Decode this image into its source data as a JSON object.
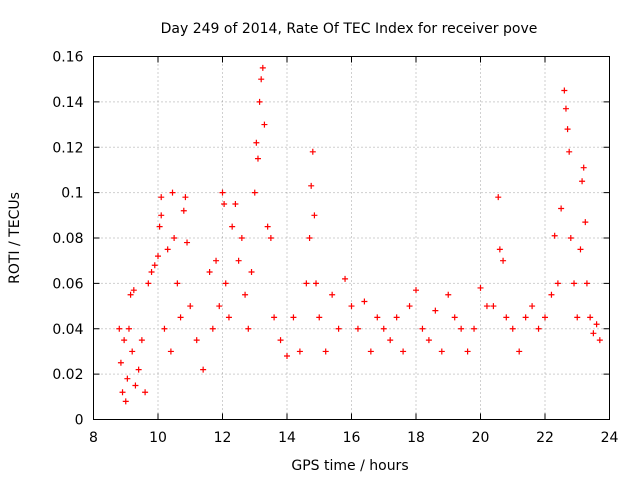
{
  "chart_data": {
    "type": "scatter",
    "title": "Day 249 of 2014, Rate Of TEC Index for receiver pove",
    "xlabel": "GPS time / hours",
    "ylabel": "ROTI / TECUs",
    "xlim": [
      8,
      24
    ],
    "ylim": [
      0,
      0.16
    ],
    "x_ticks": [
      "8",
      "10",
      "12",
      "14",
      "16",
      "18",
      "20",
      "22",
      "24"
    ],
    "y_ticks": [
      "0",
      "0.02",
      "0.04",
      "0.06",
      "0.08",
      "0.1",
      "0.12",
      "0.14",
      "0.16"
    ],
    "grid": true,
    "marker": "+",
    "series_color": "#ff0000",
    "series": [
      {
        "name": "ROTI",
        "points": [
          [
            8.8,
            0.04
          ],
          [
            8.85,
            0.025
          ],
          [
            8.9,
            0.012
          ],
          [
            8.95,
            0.035
          ],
          [
            9.0,
            0.008
          ],
          [
            9.05,
            0.018
          ],
          [
            9.1,
            0.04
          ],
          [
            9.15,
            0.055
          ],
          [
            9.2,
            0.03
          ],
          [
            9.25,
            0.057
          ],
          [
            9.3,
            0.015
          ],
          [
            9.4,
            0.022
          ],
          [
            9.5,
            0.035
          ],
          [
            9.6,
            0.012
          ],
          [
            9.7,
            0.06
          ],
          [
            9.8,
            0.065
          ],
          [
            9.9,
            0.068
          ],
          [
            10.0,
            0.072
          ],
          [
            10.05,
            0.085
          ],
          [
            10.1,
            0.09
          ],
          [
            10.1,
            0.098
          ],
          [
            10.2,
            0.04
          ],
          [
            10.3,
            0.075
          ],
          [
            10.4,
            0.03
          ],
          [
            10.45,
            0.1
          ],
          [
            10.5,
            0.08
          ],
          [
            10.6,
            0.06
          ],
          [
            10.7,
            0.045
          ],
          [
            10.8,
            0.092
          ],
          [
            10.85,
            0.098
          ],
          [
            10.9,
            0.078
          ],
          [
            11.0,
            0.05
          ],
          [
            11.2,
            0.035
          ],
          [
            11.4,
            0.022
          ],
          [
            11.6,
            0.065
          ],
          [
            11.7,
            0.04
          ],
          [
            11.8,
            0.07
          ],
          [
            11.9,
            0.05
          ],
          [
            12.0,
            0.1
          ],
          [
            12.05,
            0.095
          ],
          [
            12.1,
            0.06
          ],
          [
            12.2,
            0.045
          ],
          [
            12.3,
            0.085
          ],
          [
            12.4,
            0.095
          ],
          [
            12.5,
            0.07
          ],
          [
            12.6,
            0.08
          ],
          [
            12.7,
            0.055
          ],
          [
            12.8,
            0.04
          ],
          [
            12.9,
            0.065
          ],
          [
            13.0,
            0.1
          ],
          [
            13.05,
            0.122
          ],
          [
            13.1,
            0.115
          ],
          [
            13.15,
            0.14
          ],
          [
            13.2,
            0.15
          ],
          [
            13.25,
            0.155
          ],
          [
            13.3,
            0.13
          ],
          [
            13.4,
            0.085
          ],
          [
            13.5,
            0.08
          ],
          [
            13.6,
            0.045
          ],
          [
            13.8,
            0.035
          ],
          [
            14.0,
            0.028
          ],
          [
            14.2,
            0.045
          ],
          [
            14.4,
            0.03
          ],
          [
            14.6,
            0.06
          ],
          [
            14.7,
            0.08
          ],
          [
            14.75,
            0.103
          ],
          [
            14.8,
            0.118
          ],
          [
            14.85,
            0.09
          ],
          [
            14.9,
            0.06
          ],
          [
            15.0,
            0.045
          ],
          [
            15.2,
            0.03
          ],
          [
            15.4,
            0.055
          ],
          [
            15.6,
            0.04
          ],
          [
            15.8,
            0.062
          ],
          [
            16.0,
            0.05
          ],
          [
            16.2,
            0.04
          ],
          [
            16.4,
            0.052
          ],
          [
            16.6,
            0.03
          ],
          [
            16.8,
            0.045
          ],
          [
            17.0,
            0.04
          ],
          [
            17.2,
            0.035
          ],
          [
            17.4,
            0.045
          ],
          [
            17.6,
            0.03
          ],
          [
            17.8,
            0.05
          ],
          [
            18.0,
            0.057
          ],
          [
            18.2,
            0.04
          ],
          [
            18.4,
            0.035
          ],
          [
            18.6,
            0.048
          ],
          [
            18.8,
            0.03
          ],
          [
            19.0,
            0.055
          ],
          [
            19.2,
            0.045
          ],
          [
            19.4,
            0.04
          ],
          [
            19.6,
            0.03
          ],
          [
            19.8,
            0.04
          ],
          [
            20.0,
            0.058
          ],
          [
            20.2,
            0.05
          ],
          [
            20.4,
            0.05
          ],
          [
            20.55,
            0.098
          ],
          [
            20.6,
            0.075
          ],
          [
            20.7,
            0.07
          ],
          [
            20.8,
            0.045
          ],
          [
            21.0,
            0.04
          ],
          [
            21.2,
            0.03
          ],
          [
            21.4,
            0.045
          ],
          [
            21.6,
            0.05
          ],
          [
            21.8,
            0.04
          ],
          [
            22.0,
            0.045
          ],
          [
            22.2,
            0.055
          ],
          [
            22.3,
            0.081
          ],
          [
            22.4,
            0.06
          ],
          [
            22.5,
            0.093
          ],
          [
            22.6,
            0.145
          ],
          [
            22.65,
            0.137
          ],
          [
            22.7,
            0.128
          ],
          [
            22.75,
            0.118
          ],
          [
            22.8,
            0.08
          ],
          [
            22.9,
            0.06
          ],
          [
            23.0,
            0.045
          ],
          [
            23.1,
            0.075
          ],
          [
            23.15,
            0.105
          ],
          [
            23.2,
            0.111
          ],
          [
            23.25,
            0.087
          ],
          [
            23.3,
            0.06
          ],
          [
            23.4,
            0.045
          ],
          [
            23.5,
            0.038
          ],
          [
            23.6,
            0.042
          ],
          [
            23.7,
            0.035
          ]
        ]
      }
    ]
  }
}
